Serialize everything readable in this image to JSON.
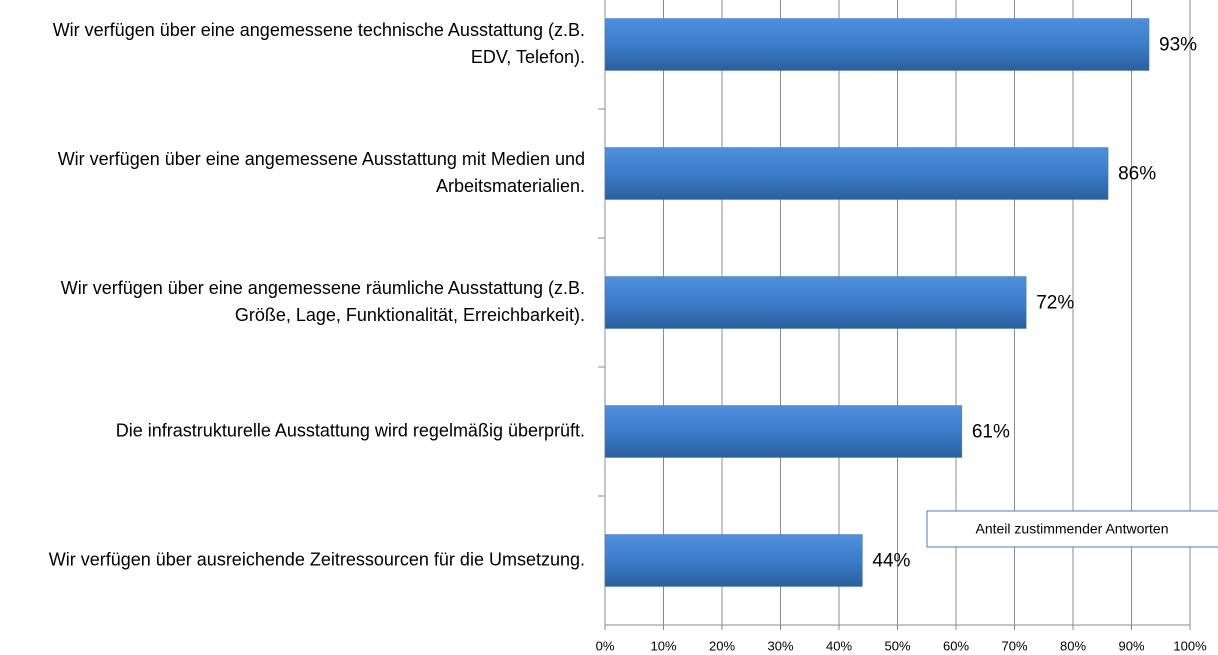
{
  "chart_data": {
    "type": "barh",
    "categories": [
      "Wir verfügen über eine angemessene technische Ausstattung (z.B. EDV, Telefon).",
      "Wir verfügen über eine angemessene Ausstattung mit Medien und Arbeitsmaterialien.",
      "Wir verfügen über eine angemessene räumliche Ausstattung (z.B. Größe, Lage, Funktionalität, Erreichbarkeit).",
      "Die infrastrukturelle Ausstattung wird regelmäßig überprüft.",
      "Wir verfügen über ausreichende Zeitressourcen für die Umsetzung."
    ],
    "series": [
      {
        "name": "Anteil zustimmender Antworten",
        "color": "#4a7ebb",
        "values": [
          93,
          86,
          72,
          61,
          44
        ],
        "value_labels": [
          "93%",
          "86%",
          "72%",
          "61%",
          "44%"
        ]
      }
    ],
    "xlim": [
      0,
      100
    ],
    "xticks": [
      {
        "value": 0,
        "label": "0%"
      },
      {
        "value": 10,
        "label": "10%"
      },
      {
        "value": 20,
        "label": "20%"
      },
      {
        "value": 30,
        "label": "30%"
      },
      {
        "value": 40,
        "label": "40%"
      },
      {
        "value": 50,
        "label": "50%"
      },
      {
        "value": 60,
        "label": "60%"
      },
      {
        "value": 70,
        "label": "70%"
      },
      {
        "value": 80,
        "label": "80%"
      },
      {
        "value": 90,
        "label": "90%"
      },
      {
        "value": 100,
        "label": "100%"
      }
    ],
    "grid": true,
    "legend": "lower right"
  }
}
